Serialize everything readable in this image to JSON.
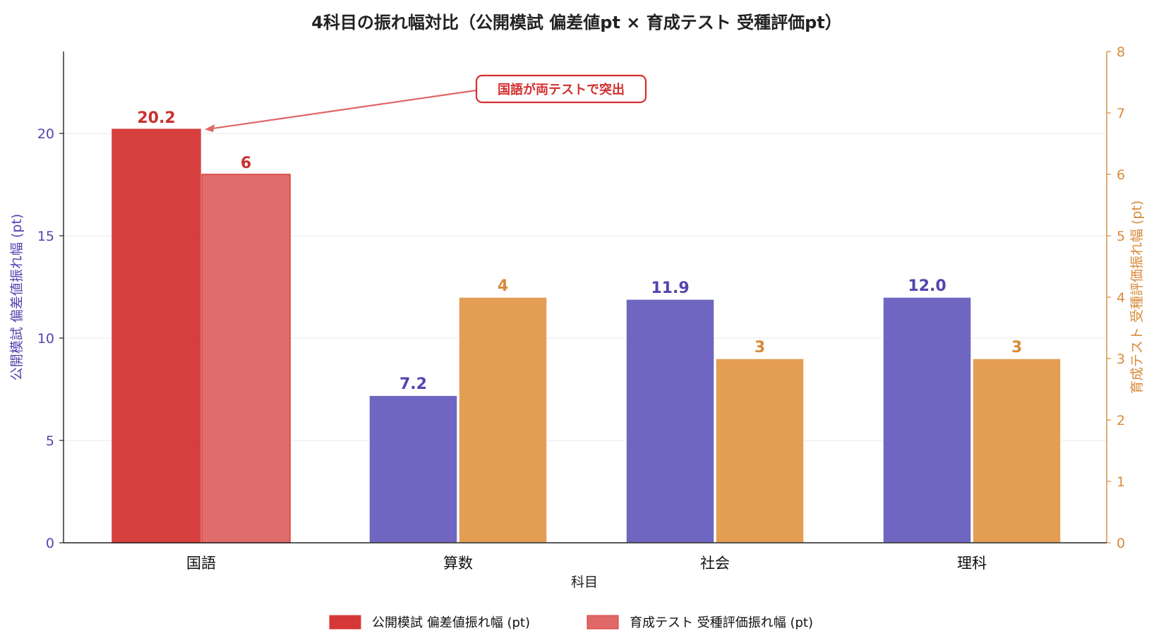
{
  "chart_data": {
    "type": "bar",
    "title": "4科目の振れ幅対比（公開模試 偏差値pt × 育成テスト 受種評価pt）",
    "xlabel": "科目",
    "ylabel_left": "公開模試 偏差値振れ幅 (pt)",
    "ylabel_right": "育成テスト 受種評価振れ幅 (pt)",
    "categories": [
      "国語",
      "算数",
      "社会",
      "理科"
    ],
    "ylim_left": [
      0,
      24
    ],
    "ylim_right": [
      0,
      8
    ],
    "yticks_left": [
      0,
      5,
      10,
      15,
      20
    ],
    "yticks_right": [
      0,
      1,
      2,
      3,
      4,
      5,
      6,
      7,
      8
    ],
    "grid": true,
    "legend_position": "bottom-center",
    "series": [
      {
        "name": "公開模試 偏差値振れ幅 (pt)",
        "axis": "left",
        "values": [
          20.2,
          7.2,
          11.9,
          12.0
        ],
        "labels": [
          "20.2",
          "7.2",
          "11.9",
          "12.0"
        ]
      },
      {
        "name": "育成テスト 受種評価振れ幅 (pt)",
        "axis": "right",
        "values": [
          6,
          4,
          3,
          3
        ],
        "labels": [
          "6",
          "4",
          "3",
          "3"
        ]
      }
    ],
    "annotation": {
      "text": "国語が両テストで突出",
      "target_category": "国語",
      "target_value": 20.2
    }
  },
  "colors": {
    "left_series": "#6b62c0",
    "right_series": "#e39b4f",
    "highlight_left": "#d63838",
    "highlight_right": "#e06868",
    "left_axis": "#5145b0",
    "right_axis": "#d98a3a",
    "annotation": "#d32f2f"
  }
}
